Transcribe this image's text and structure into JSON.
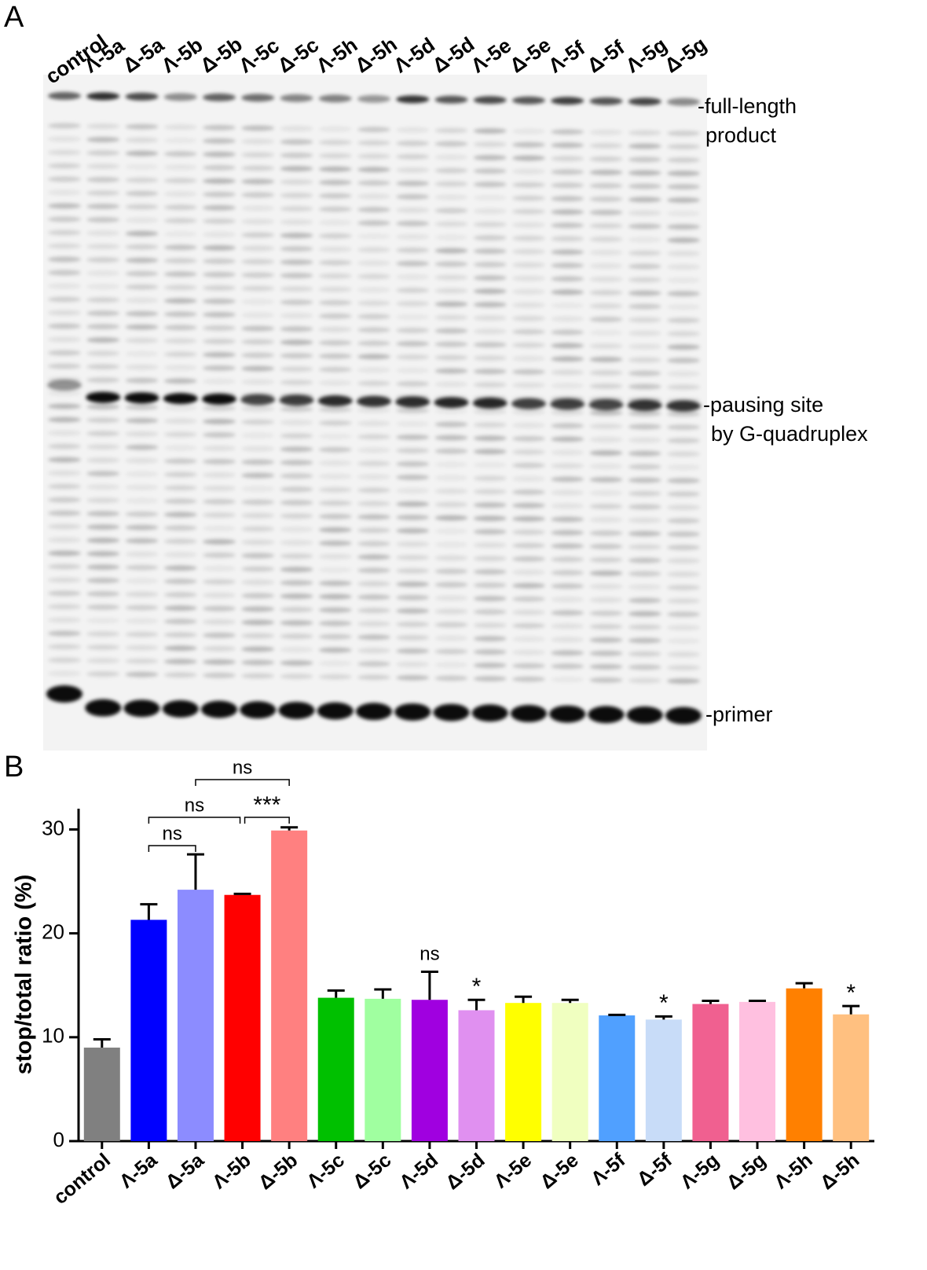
{
  "panel_a": {
    "label": "A",
    "lanes": [
      "control",
      "Λ-5a",
      "Δ-5a",
      "Λ-5b",
      "Δ-5b",
      "Λ-5c",
      "Δ-5c",
      "Λ-5h",
      "Δ-5h",
      "Λ-5d",
      "Δ-5d",
      "Λ-5e",
      "Δ-5e",
      "Λ-5f",
      "Δ-5f",
      "Λ-5g",
      "Δ-5g"
    ],
    "annotations": [
      "-full-length",
      "product",
      "-pausing site",
      "by G-quadruplex",
      "-primer"
    ]
  },
  "chart_data": {
    "type": "bar",
    "panel_label": "B",
    "y_label": "stop/total ratio (%)",
    "categories": [
      "control",
      "Λ-5a",
      "Δ-5a",
      "Λ-5b",
      "Δ-5b",
      "Λ-5c",
      "Δ-5c",
      "Λ-5d",
      "Δ-5d",
      "Λ-5e",
      "Δ-5e",
      "Λ-5f",
      "Δ-5f",
      "Λ-5g",
      "Δ-5g",
      "Λ-5h",
      "Δ-5h"
    ],
    "values": [
      9.0,
      21.3,
      24.2,
      23.7,
      29.9,
      13.8,
      13.7,
      13.6,
      12.6,
      13.3,
      13.3,
      12.1,
      11.7,
      13.2,
      13.4,
      14.7,
      12.2
    ],
    "errors": [
      0.8,
      1.5,
      3.4,
      0.1,
      0.3,
      0.7,
      0.9,
      2.7,
      1.0,
      0.6,
      0.3,
      0.05,
      0.3,
      0.3,
      0.1,
      0.5,
      0.8
    ],
    "colors": [
      "#808080",
      "#0000ff",
      "#8c8cff",
      "#ff0000",
      "#ff8080",
      "#00c000",
      "#a0ffa0",
      "#a000e0",
      "#e090f0",
      "#ffff00",
      "#f0ffc0",
      "#50a0ff",
      "#c8dcf8",
      "#f06090",
      "#ffc0e0",
      "#ff8000",
      "#ffc080"
    ],
    "ylim": [
      0,
      32
    ],
    "yticks": [
      0,
      10,
      20,
      30
    ],
    "annotations": [
      "ns",
      "ns",
      "***",
      "ns",
      "ns",
      "*",
      "*",
      "*"
    ]
  }
}
